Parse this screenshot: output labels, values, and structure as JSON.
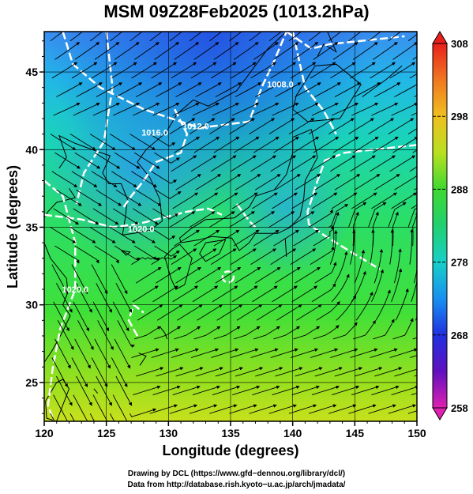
{
  "title": "MSM 09Z28Feb2025 (1013.2hPa)",
  "x_axis": {
    "label": "Longitude (degrees)",
    "ticks": [
      {
        "value": 120,
        "label": "120"
      },
      {
        "value": 125,
        "label": "125"
      },
      {
        "value": 130,
        "label": "130"
      },
      {
        "value": 135,
        "label": "135"
      },
      {
        "value": 140,
        "label": "140"
      },
      {
        "value": 145,
        "label": "145"
      },
      {
        "value": 150,
        "label": "150"
      }
    ],
    "range": [
      120,
      150
    ]
  },
  "y_axis": {
    "label": "Latitude  (degrees)",
    "ticks": [
      {
        "value": 25,
        "label": "25"
      },
      {
        "value": 30,
        "label": "30"
      },
      {
        "value": 35,
        "label": "35"
      },
      {
        "value": 40,
        "label": "40"
      },
      {
        "value": 45,
        "label": "45"
      }
    ],
    "range": [
      22.5,
      47.6
    ]
  },
  "colorbar": {
    "ticks": [
      {
        "value": 258,
        "label": "258"
      },
      {
        "value": 268,
        "label": "268"
      },
      {
        "value": 278,
        "label": "278"
      },
      {
        "value": 288,
        "label": "288"
      },
      {
        "value": 298,
        "label": "298"
      },
      {
        "value": 308,
        "label": "308"
      }
    ],
    "range": [
      258,
      308
    ]
  },
  "contours": [
    {
      "label": "1016.0",
      "lon": 128.9,
      "lat": 40.9
    },
    {
      "label": "1012.0",
      "lon": 132.2,
      "lat": 41.3
    },
    {
      "label": "1020.0",
      "lon": 127.8,
      "lat": 34.7
    },
    {
      "label": "1020.0",
      "lon": 122.5,
      "lat": 30.8
    },
    {
      "label": "1008.0",
      "lon": 139.0,
      "lat": 44.0
    }
  ],
  "credits": {
    "line1": "Drawing by DCL (https://www.gfd−dennou.org/library/dcl/)",
    "line2": "Data from http://database.rish.kyoto−u.ac.jp/arch/jmadata/"
  },
  "colors": {
    "contour": "#ffffff",
    "coast": "#000000",
    "streamline": "#000000"
  }
}
